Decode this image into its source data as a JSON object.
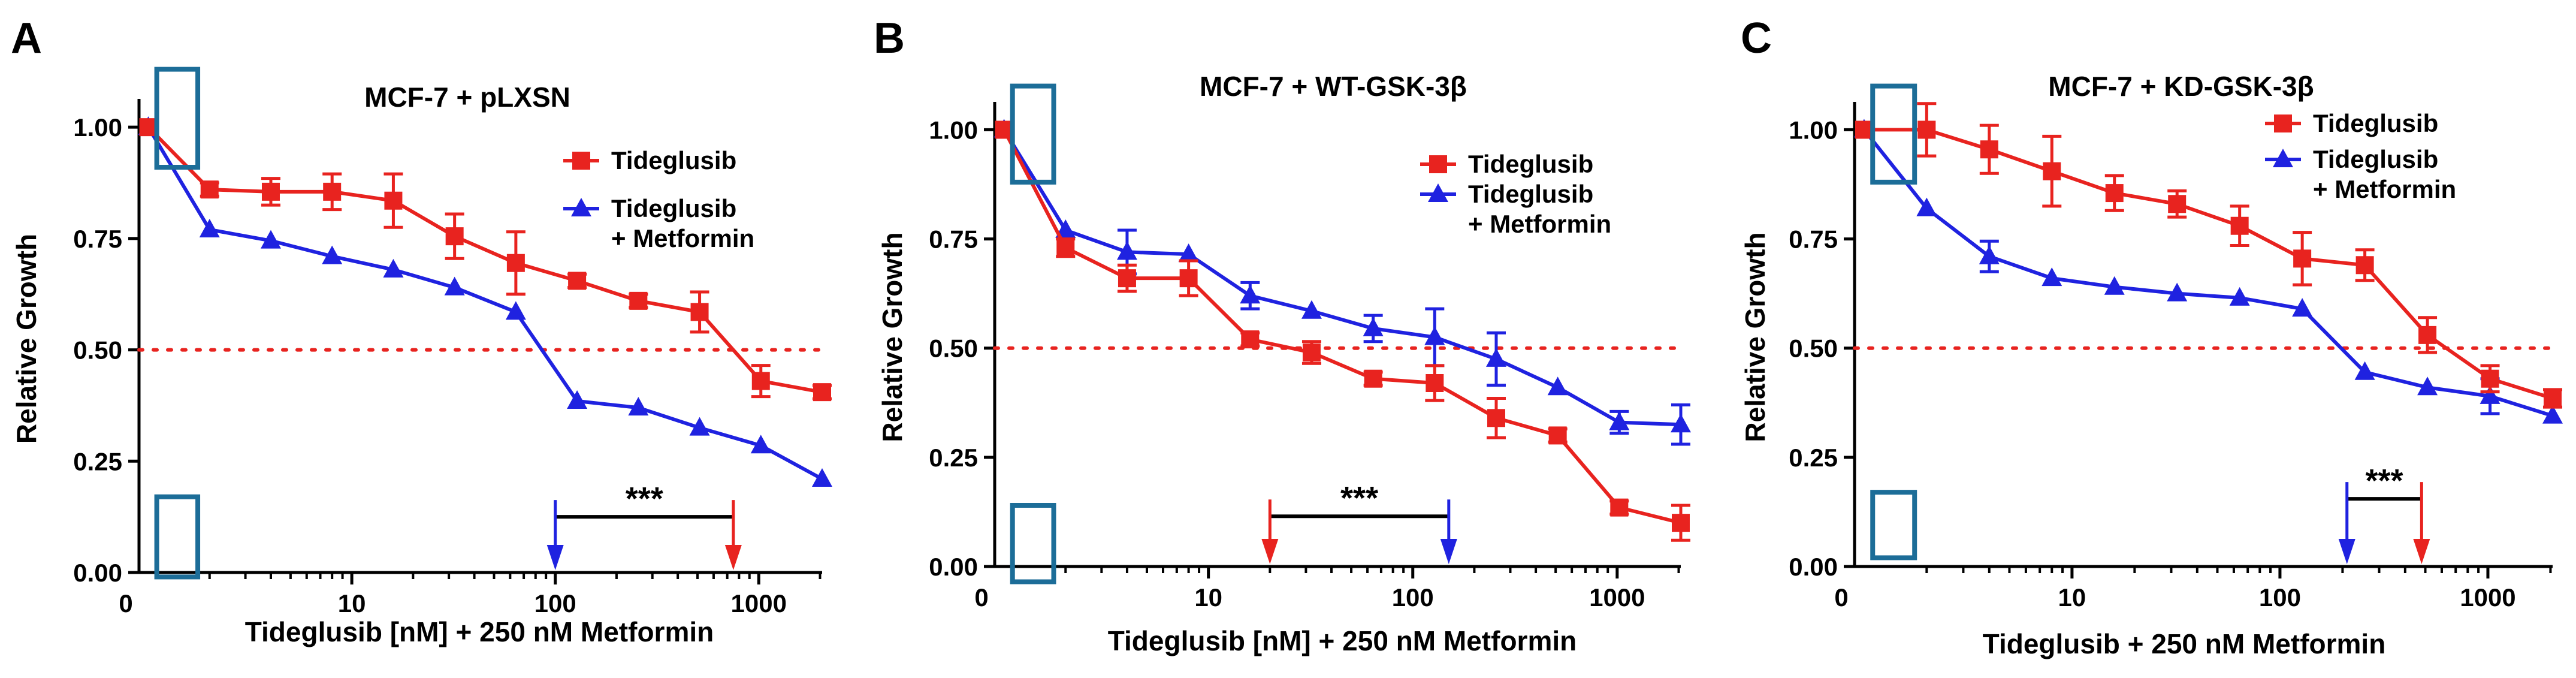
{
  "colors": {
    "red": "#e8231f",
    "blue": "#1f22e0",
    "box": "#1c6d98",
    "black": "#000000",
    "dotted": "#e8231f"
  },
  "chart_data": [
    {
      "type": "line",
      "panel_letter": "A",
      "title": "MCF-7 + pLXSN",
      "xlabel": "Tideglusib [nM] + 250 nM Metformin",
      "ylabel": "Relative Growth",
      "xscale": "log",
      "xlim": [
        0.9,
        2048
      ],
      "ylim": [
        0,
        1.05
      ],
      "yticks": [
        "0.00",
        "0.25",
        "0.50",
        "0.75",
        "1.00"
      ],
      "xticks": [
        "0",
        "10",
        "100",
        "1000"
      ],
      "reference_line": 0.5,
      "legend_position": "right",
      "series": [
        {
          "name": "Tideglusib",
          "color": "red",
          "marker": "square",
          "x": [
            1,
            2,
            4,
            8,
            16,
            32,
            64,
            128,
            256,
            512,
            1024,
            2048
          ],
          "y": [
            1.0,
            0.86,
            0.855,
            0.855,
            0.835,
            0.755,
            0.695,
            0.655,
            0.61,
            0.585,
            0.43,
            0.405
          ],
          "err": [
            0,
            0.015,
            0.03,
            0.04,
            0.06,
            0.05,
            0.07,
            0.015,
            0.015,
            0.045,
            0.035,
            0.015
          ]
        },
        {
          "name": "Tideglusib + Metformin",
          "color": "blue",
          "marker": "triangle",
          "x": [
            1,
            2,
            4,
            8,
            16,
            32,
            64,
            128,
            256,
            512,
            1024,
            2048
          ],
          "y": [
            1.0,
            0.77,
            0.745,
            0.71,
            0.68,
            0.64,
            0.585,
            0.385,
            0.37,
            0.325,
            0.285,
            0.21
          ],
          "err": [
            0,
            0,
            0,
            0,
            0,
            0,
            0,
            0,
            0,
            0,
            0,
            0
          ]
        }
      ],
      "significance": {
        "label": "***",
        "x_from": 100,
        "x_to": 750
      },
      "boxes": [
        {
          "x_range": [
            1.1,
            1.75
          ],
          "y_range": [
            0.91,
            1.13
          ]
        },
        {
          "x_range": [
            1.1,
            1.75
          ],
          "y_range": [
            -0.01,
            0.17
          ]
        }
      ]
    },
    {
      "type": "line",
      "panel_letter": "B",
      "title": "MCF-7 + WT-GSK-3β",
      "xlabel": "Tideglusib [nM] + 250 nM Metformin",
      "ylabel": "Relative Growth",
      "xscale": "log",
      "xlim": [
        0.9,
        2048
      ],
      "ylim": [
        0,
        1.05
      ],
      "yticks": [
        "0.00",
        "0.25",
        "0.50",
        "0.75",
        "1.00"
      ],
      "xticks": [
        "0",
        "10",
        "100",
        "1000"
      ],
      "reference_line": 0.5,
      "legend_position": "right",
      "series": [
        {
          "name": "Tideglusib",
          "color": "red",
          "marker": "square",
          "x": [
            1,
            2,
            4,
            8,
            16,
            32,
            64,
            128,
            256,
            512,
            1024,
            2048
          ],
          "y": [
            1.0,
            0.73,
            0.66,
            0.66,
            0.52,
            0.49,
            0.43,
            0.42,
            0.34,
            0.3,
            0.135,
            0.1
          ],
          "err": [
            0,
            0.02,
            0.03,
            0.04,
            0.015,
            0.025,
            0.015,
            0.04,
            0.045,
            0.015,
            0.015,
            0.04
          ]
        },
        {
          "name": "Tideglusib + Metformin",
          "color": "blue",
          "marker": "triangle",
          "x": [
            1,
            2,
            4,
            8,
            16,
            32,
            64,
            128,
            256,
            512,
            1024,
            2048
          ],
          "y": [
            1.0,
            0.77,
            0.72,
            0.715,
            0.62,
            0.585,
            0.545,
            0.525,
            0.475,
            0.41,
            0.33,
            0.325
          ],
          "err": [
            0,
            0,
            0.05,
            0,
            0.03,
            0,
            0.03,
            0.065,
            0.06,
            0,
            0.025,
            0.045
          ]
        }
      ],
      "significance": {
        "label": "***",
        "x_from": 20,
        "x_to": 150
      },
      "boxes": [
        {
          "x_range": [
            1.1,
            1.75
          ],
          "y_range": [
            0.88,
            1.1
          ]
        },
        {
          "x_range": [
            1.1,
            1.75
          ],
          "y_range": [
            -0.035,
            0.14
          ]
        }
      ]
    },
    {
      "type": "line",
      "panel_letter": "C",
      "title": "MCF-7 + KD-GSK-3β",
      "xlabel": "Tideglusib + 250 nM Metformin",
      "ylabel": "Relative Growth",
      "xscale": "log",
      "xlim": [
        0.9,
        2048
      ],
      "ylim": [
        0,
        1.05
      ],
      "yticks": [
        "0.00",
        "0.25",
        "0.50",
        "0.75",
        "1.00"
      ],
      "xticks": [
        "0",
        "10",
        "100",
        "1000"
      ],
      "reference_line": 0.5,
      "legend_position": "top-right",
      "series": [
        {
          "name": "Tideglusib",
          "color": "red",
          "marker": "square",
          "x": [
            1,
            2,
            4,
            8,
            16,
            32,
            64,
            128,
            256,
            512,
            1024,
            2048
          ],
          "y": [
            1.0,
            1.0,
            0.955,
            0.905,
            0.855,
            0.83,
            0.78,
            0.705,
            0.69,
            0.53,
            0.43,
            0.385
          ],
          "err": [
            0,
            0.06,
            0.055,
            0.08,
            0.04,
            0.03,
            0.045,
            0.06,
            0.035,
            0.04,
            0.03,
            0.02
          ]
        },
        {
          "name": "Tideglusib + Metformin",
          "color": "blue",
          "marker": "triangle",
          "x": [
            1,
            2,
            4,
            8,
            16,
            32,
            64,
            128,
            256,
            512,
            1024,
            2048
          ],
          "y": [
            1.0,
            0.82,
            0.71,
            0.66,
            0.64,
            0.625,
            0.615,
            0.59,
            0.445,
            0.41,
            0.39,
            0.345
          ],
          "err": [
            0,
            0,
            0.035,
            0,
            0,
            0,
            0,
            0,
            0,
            0,
            0.04,
            0
          ]
        }
      ],
      "significance": {
        "label": "***",
        "x_from": 210,
        "x_to": 480
      },
      "boxes": [
        {
          "x_range": [
            1.1,
            1.75
          ],
          "y_range": [
            0.88,
            1.1
          ]
        },
        {
          "x_range": [
            1.1,
            1.75
          ],
          "y_range": [
            0.02,
            0.17
          ]
        }
      ]
    }
  ]
}
